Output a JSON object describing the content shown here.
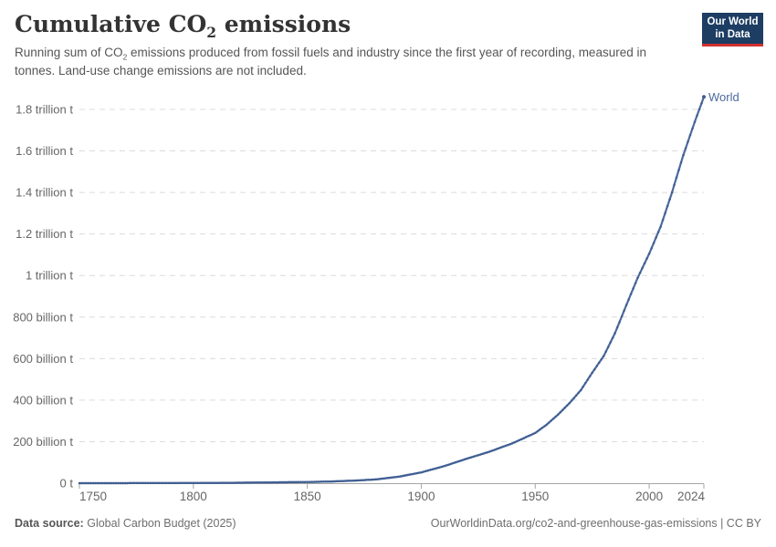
{
  "header": {
    "title": {
      "pre": "Cumulative CO",
      "sub": "2",
      "post": " emissions"
    },
    "subtitle": {
      "pre": "Running sum of CO",
      "sub": "2",
      "post": " emissions produced from fossil fuels and industry since the first year of recording, measured in tonnes. Land-use change emissions are not included."
    },
    "logo": {
      "line1": "Our World",
      "line2": "in Data",
      "bg_color": "#1d3d63",
      "accent_color": "#d3302f"
    }
  },
  "chart_data": {
    "type": "line",
    "title": "Cumulative CO₂ emissions",
    "xlabel": "",
    "ylabel": "",
    "unit": "tonnes (billion t)",
    "xlim": [
      1750,
      2024
    ],
    "ylim": [
      0,
      1800
    ],
    "grid": "horizontal-dashed",
    "grid_color": "#dcdcdc",
    "axis_color": "#a5a5a5",
    "tick_label_color": "#666666",
    "legend_position": "end-of-line-label",
    "x_ticks": [
      {
        "value": 1750,
        "label": "1750"
      },
      {
        "value": 1800,
        "label": "1800"
      },
      {
        "value": 1850,
        "label": "1850"
      },
      {
        "value": 1900,
        "label": "1900"
      },
      {
        "value": 1950,
        "label": "1950"
      },
      {
        "value": 2000,
        "label": "2000"
      },
      {
        "value": 2024,
        "label": "2024"
      }
    ],
    "y_ticks": [
      {
        "value": 0,
        "label": "0 t"
      },
      {
        "value": 200,
        "label": "200 billion t"
      },
      {
        "value": 400,
        "label": "400 billion t"
      },
      {
        "value": 600,
        "label": "600 billion t"
      },
      {
        "value": 800,
        "label": "800 billion t"
      },
      {
        "value": 1000,
        "label": "1 trillion t"
      },
      {
        "value": 1200,
        "label": "1.2 trillion t"
      },
      {
        "value": 1400,
        "label": "1.4 trillion t"
      },
      {
        "value": 1600,
        "label": "1.6 trillion t"
      },
      {
        "value": 1800,
        "label": "1.8 trillion t"
      }
    ],
    "series": [
      {
        "name": "World",
        "color": "#4c6a9c",
        "marker_color": "#3f5e92",
        "points": [
          [
            1750,
            0
          ],
          [
            1760,
            0.1
          ],
          [
            1770,
            0.2
          ],
          [
            1780,
            0.3
          ],
          [
            1790,
            0.5
          ],
          [
            1800,
            0.9
          ],
          [
            1810,
            1.4
          ],
          [
            1820,
            2.1
          ],
          [
            1830,
            3.2
          ],
          [
            1840,
            4.5
          ],
          [
            1850,
            5.5
          ],
          [
            1860,
            8
          ],
          [
            1870,
            12
          ],
          [
            1880,
            18
          ],
          [
            1890,
            31
          ],
          [
            1900,
            52
          ],
          [
            1910,
            82
          ],
          [
            1920,
            118
          ],
          [
            1930,
            152
          ],
          [
            1940,
            192
          ],
          [
            1950,
            242
          ],
          [
            1955,
            282
          ],
          [
            1960,
            330
          ],
          [
            1965,
            385
          ],
          [
            1970,
            448
          ],
          [
            1975,
            532
          ],
          [
            1980,
            612
          ],
          [
            1985,
            722
          ],
          [
            1990,
            858
          ],
          [
            1995,
            990
          ],
          [
            2000,
            1105
          ],
          [
            2005,
            1235
          ],
          [
            2010,
            1400
          ],
          [
            2015,
            1580
          ],
          [
            2020,
            1740
          ],
          [
            2024,
            1860
          ]
        ]
      }
    ]
  },
  "footer": {
    "data_source_label": "Data source:",
    "data_source_value": "Global Carbon Budget (2025)",
    "url": "OurWorldinData.org/co2-and-greenhouse-gas-emissions | CC BY"
  }
}
